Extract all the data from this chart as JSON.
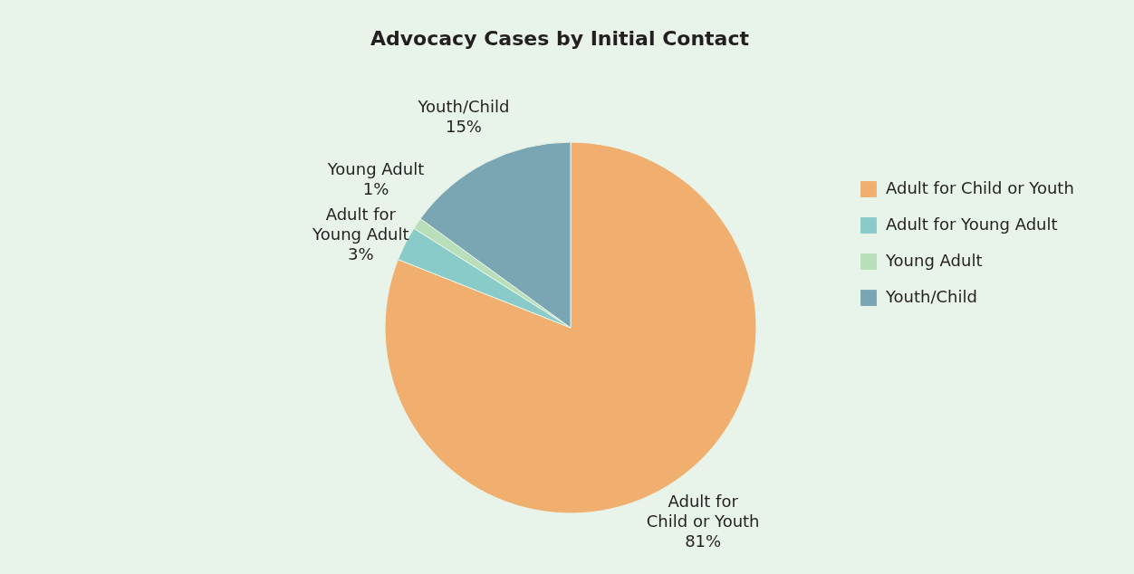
{
  "chart_data": {
    "type": "pie",
    "title": "Advocacy Cases by Initial Contact",
    "categories": [
      "Adult for Child or Youth",
      "Adult for Young Adult",
      "Young Adult",
      "Youth/Child"
    ],
    "values": [
      81,
      3,
      1,
      15
    ],
    "colors": [
      "#f0af6f",
      "#88cbc8",
      "#b9dfba",
      "#7aa5b2"
    ],
    "value_labels": [
      "81%",
      "3%",
      "1%",
      "15%"
    ],
    "legend": "right"
  }
}
